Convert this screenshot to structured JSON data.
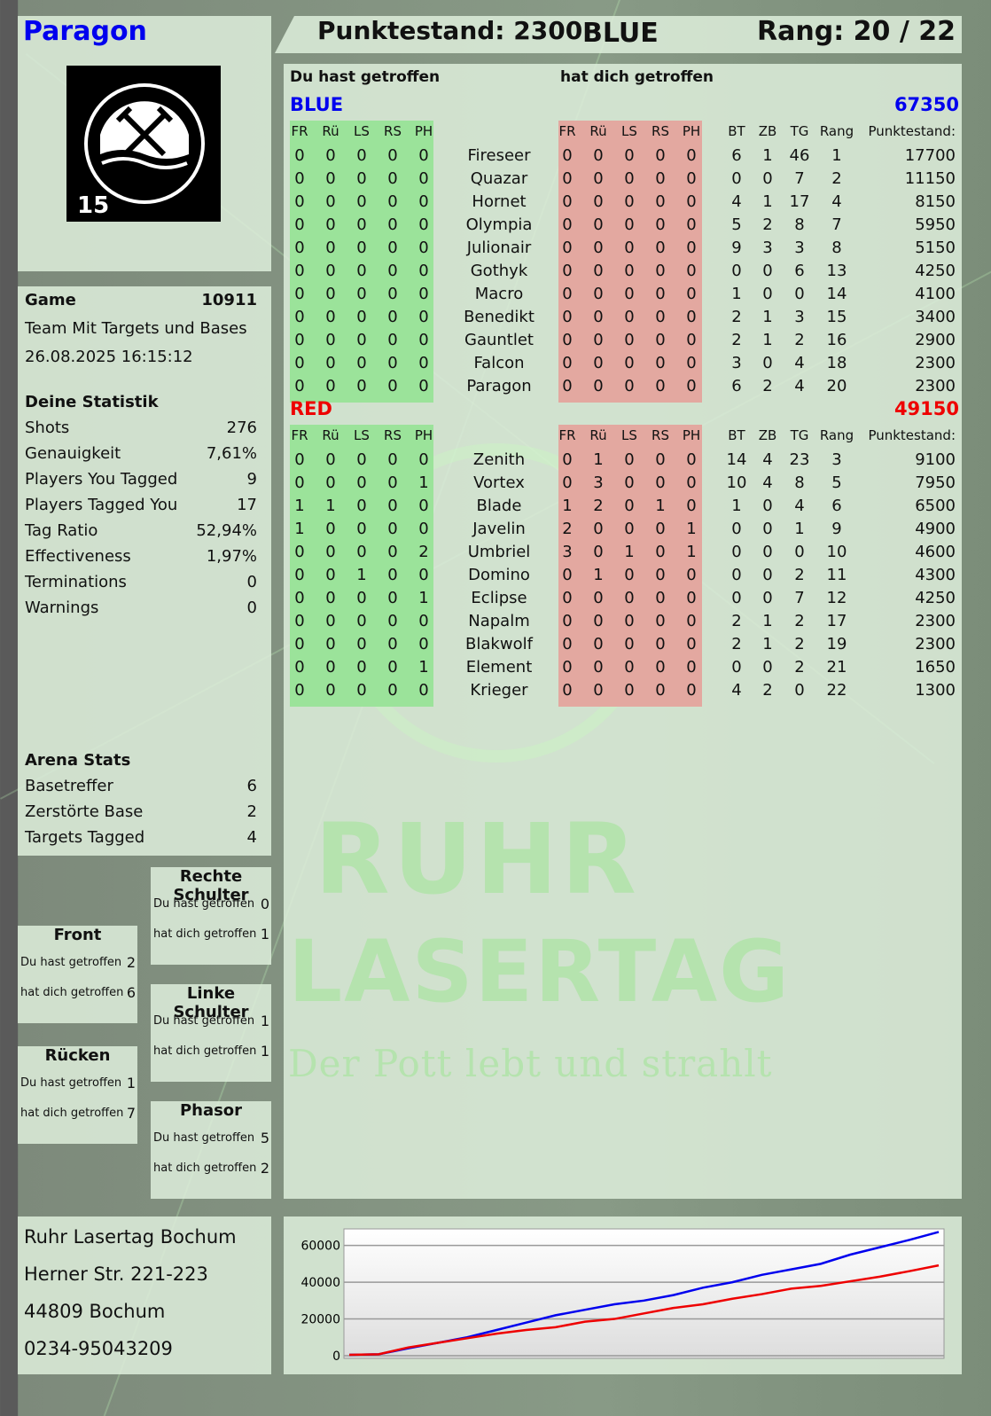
{
  "player": {
    "name": "Paragon",
    "score_label": "Punktestand: 2300",
    "team": "BLUE",
    "rank_label": "Rang: 20 / 22"
  },
  "logo": {
    "top": "RUHR",
    "bottom": "LASERTAG",
    "badge": "15"
  },
  "watermark": {
    "line1": "RUHR",
    "line2": "LASERTAG",
    "slogan": "Der Pott lebt und strahlt"
  },
  "game": {
    "label": "Game",
    "id": "10911",
    "mode": "Team Mit Targets und Bases",
    "datetime": "26.08.2025 16:15:12"
  },
  "stats": {
    "title": "Deine Statistik",
    "items": [
      {
        "label": "Shots",
        "value": "276"
      },
      {
        "label": "Genauigkeit",
        "value": "7,61%"
      },
      {
        "label": "Players You Tagged",
        "value": "9"
      },
      {
        "label": "Players Tagged You",
        "value": "17"
      },
      {
        "label": "Tag Ratio",
        "value": "52,94%"
      },
      {
        "label": "Effectiveness",
        "value": "1,97%"
      },
      {
        "label": "Terminations",
        "value": "0"
      },
      {
        "label": "Warnings",
        "value": "0"
      }
    ]
  },
  "arena": {
    "title": "Arena Stats",
    "items": [
      {
        "label": "Basetreffer",
        "value": "6"
      },
      {
        "label": "Zerstörte Base",
        "value": "2"
      },
      {
        "label": "Targets Tagged",
        "value": "4"
      }
    ]
  },
  "zones": {
    "hit_label": "Du hast getroffen",
    "got_label": "hat dich getroffen",
    "items": [
      {
        "name": "Rechte Schulter",
        "hit": "0",
        "got": "1"
      },
      {
        "name": "Front",
        "hit": "2",
        "got": "6"
      },
      {
        "name": "Linke Schulter",
        "hit": "1",
        "got": "1"
      },
      {
        "name": "Rücken",
        "hit": "1",
        "got": "7"
      },
      {
        "name": "Phasor",
        "hit": "5",
        "got": "2"
      }
    ]
  },
  "address": [
    "Ruhr Lasertag Bochum",
    "Herner Str. 221-223",
    "44809 Bochum",
    "0234-95043209"
  ],
  "table": {
    "you_hit": "Du hast getroffen",
    "hit_you": "hat dich getroffen",
    "zone_headers": [
      "FR",
      "Rü",
      "LS",
      "RS",
      "PH"
    ],
    "stat_headers": [
      "BT",
      "ZB",
      "TG",
      "Rang",
      "Punktestand:"
    ],
    "colors": {
      "blue": "#0000ee",
      "red": "#ee0000",
      "hit_bg": "#9be39a",
      "got_bg": "#e3a8a0"
    },
    "teams": [
      {
        "name": "BLUE",
        "total": "67350",
        "color": "#0000ee",
        "players": [
          [
            "0",
            "0",
            "0",
            "0",
            "0",
            "Fireseer",
            "0",
            "0",
            "0",
            "0",
            "0",
            "6",
            "1",
            "46",
            "1",
            "17700"
          ],
          [
            "0",
            "0",
            "0",
            "0",
            "0",
            "Quazar",
            "0",
            "0",
            "0",
            "0",
            "0",
            "0",
            "0",
            "7",
            "2",
            "11150"
          ],
          [
            "0",
            "0",
            "0",
            "0",
            "0",
            "Hornet",
            "0",
            "0",
            "0",
            "0",
            "0",
            "4",
            "1",
            "17",
            "4",
            "8150"
          ],
          [
            "0",
            "0",
            "0",
            "0",
            "0",
            "Olympia",
            "0",
            "0",
            "0",
            "0",
            "0",
            "5",
            "2",
            "8",
            "7",
            "5950"
          ],
          [
            "0",
            "0",
            "0",
            "0",
            "0",
            "Julionair",
            "0",
            "0",
            "0",
            "0",
            "0",
            "9",
            "3",
            "3",
            "8",
            "5150"
          ],
          [
            "0",
            "0",
            "0",
            "0",
            "0",
            "Gothyk",
            "0",
            "0",
            "0",
            "0",
            "0",
            "0",
            "0",
            "6",
            "13",
            "4250"
          ],
          [
            "0",
            "0",
            "0",
            "0",
            "0",
            "Macro",
            "0",
            "0",
            "0",
            "0",
            "0",
            "1",
            "0",
            "0",
            "14",
            "4100"
          ],
          [
            "0",
            "0",
            "0",
            "0",
            "0",
            "Benedikt",
            "0",
            "0",
            "0",
            "0",
            "0",
            "2",
            "1",
            "3",
            "15",
            "3400"
          ],
          [
            "0",
            "0",
            "0",
            "0",
            "0",
            "Gauntlet",
            "0",
            "0",
            "0",
            "0",
            "0",
            "2",
            "1",
            "2",
            "16",
            "2900"
          ],
          [
            "0",
            "0",
            "0",
            "0",
            "0",
            "Falcon",
            "0",
            "0",
            "0",
            "0",
            "0",
            "3",
            "0",
            "4",
            "18",
            "2300"
          ],
          [
            "0",
            "0",
            "0",
            "0",
            "0",
            "Paragon",
            "0",
            "0",
            "0",
            "0",
            "0",
            "6",
            "2",
            "4",
            "20",
            "2300"
          ]
        ]
      },
      {
        "name": "RED",
        "total": "49150",
        "color": "#ee0000",
        "players": [
          [
            "0",
            "0",
            "0",
            "0",
            "0",
            "Zenith",
            "0",
            "1",
            "0",
            "0",
            "0",
            "14",
            "4",
            "23",
            "3",
            "9100"
          ],
          [
            "0",
            "0",
            "0",
            "0",
            "1",
            "Vortex",
            "0",
            "3",
            "0",
            "0",
            "0",
            "10",
            "4",
            "8",
            "5",
            "7950"
          ],
          [
            "1",
            "1",
            "0",
            "0",
            "0",
            "Blade",
            "1",
            "2",
            "0",
            "1",
            "0",
            "1",
            "0",
            "4",
            "6",
            "6500"
          ],
          [
            "1",
            "0",
            "0",
            "0",
            "0",
            "Javelin",
            "2",
            "0",
            "0",
            "0",
            "1",
            "0",
            "0",
            "1",
            "9",
            "4900"
          ],
          [
            "0",
            "0",
            "0",
            "0",
            "2",
            "Umbriel",
            "3",
            "0",
            "1",
            "0",
            "1",
            "0",
            "0",
            "0",
            "10",
            "4600"
          ],
          [
            "0",
            "0",
            "1",
            "0",
            "0",
            "Domino",
            "0",
            "1",
            "0",
            "0",
            "0",
            "0",
            "0",
            "2",
            "11",
            "4300"
          ],
          [
            "0",
            "0",
            "0",
            "0",
            "1",
            "Eclipse",
            "0",
            "0",
            "0",
            "0",
            "0",
            "0",
            "0",
            "7",
            "12",
            "4250"
          ],
          [
            "0",
            "0",
            "0",
            "0",
            "0",
            "Napalm",
            "0",
            "0",
            "0",
            "0",
            "0",
            "2",
            "1",
            "2",
            "17",
            "2300"
          ],
          [
            "0",
            "0",
            "0",
            "0",
            "0",
            "Blakwolf",
            "0",
            "0",
            "0",
            "0",
            "0",
            "2",
            "1",
            "2",
            "19",
            "2300"
          ],
          [
            "0",
            "0",
            "0",
            "0",
            "1",
            "Element",
            "0",
            "0",
            "0",
            "0",
            "0",
            "0",
            "0",
            "2",
            "21",
            "1650"
          ],
          [
            "0",
            "0",
            "0",
            "0",
            "0",
            "Krieger",
            "0",
            "0",
            "0",
            "0",
            "0",
            "4",
            "2",
            "0",
            "22",
            "1300"
          ]
        ]
      }
    ]
  },
  "chart_data": {
    "type": "line",
    "title": "",
    "xlabel": "",
    "ylabel": "",
    "ylim": [
      0,
      69000
    ],
    "yticks": [
      "0",
      "20000",
      "40000",
      "60000"
    ],
    "grid": true,
    "series": [
      {
        "color": "#0000ee",
        "values": [
          500,
          800,
          4000,
          7000,
          10000,
          14000,
          18000,
          22000,
          25000,
          28000,
          30000,
          33000,
          37000,
          40000,
          44000,
          47000,
          50000,
          55000,
          59000,
          63000,
          67350
        ]
      },
      {
        "color": "#ee0000",
        "values": [
          500,
          800,
          4500,
          7000,
          9500,
          12000,
          14000,
          15500,
          18500,
          20000,
          23000,
          26000,
          28000,
          31000,
          33500,
          36500,
          38000,
          40500,
          43000,
          46000,
          49150
        ]
      }
    ]
  }
}
